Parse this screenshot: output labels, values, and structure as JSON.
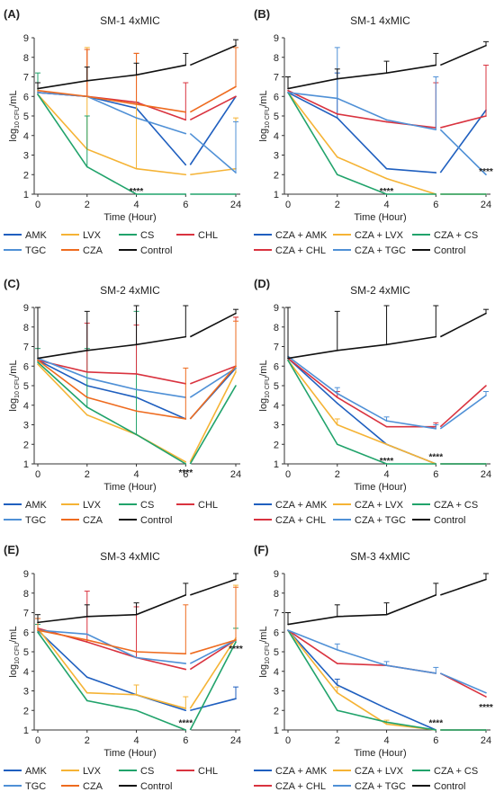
{
  "colors": {
    "AMK": "#1f5fbf",
    "LVX": "#f5b335",
    "CS": "#21a36b",
    "CHL": "#d9333f",
    "TGC": "#4f90d6",
    "CZA": "#ee6b1f",
    "Control": "#111111"
  },
  "chart_data": [
    {
      "type": "line",
      "panel": "(A)",
      "title": "SM-1 4xMIC",
      "xlabel": "Time (Hour)",
      "ylabel_main": "log",
      "ylabel_sub": "10 CFU",
      "ylabel_tail": "/mL",
      "x": [
        0,
        2,
        4,
        6,
        24
      ],
      "xticks": [
        "0",
        "2",
        "4",
        "6",
        "24"
      ],
      "ylim": [
        1,
        9
      ],
      "yticks": [
        1,
        2,
        3,
        4,
        5,
        6,
        7,
        8,
        9
      ],
      "annotations": [
        {
          "text": "****",
          "x": 4,
          "y": 1.05
        }
      ],
      "series": [
        {
          "name": "AMK",
          "key": "AMK",
          "values": [
            6.2,
            6.0,
            5.4,
            2.5,
            6.0
          ],
          "errors": [
            0,
            0,
            0.3,
            0,
            0
          ]
        },
        {
          "name": "LVX",
          "key": "LVX",
          "values": [
            6.1,
            3.3,
            2.3,
            2.0,
            2.3
          ],
          "errors": [
            0,
            5.2,
            5.9,
            0,
            2.6
          ]
        },
        {
          "name": "CS",
          "key": "CS",
          "values": [
            6.1,
            2.4,
            1.0,
            1.0,
            1.0
          ],
          "errors": [
            1.1,
            2.6,
            0,
            0,
            0
          ]
        },
        {
          "name": "CHL",
          "key": "CHL",
          "values": [
            6.2,
            6.0,
            5.7,
            4.8,
            6.0
          ],
          "errors": [
            0,
            2.4,
            2.5,
            1.9,
            0
          ]
        },
        {
          "name": "TGC",
          "key": "TGC",
          "values": [
            6.2,
            6.0,
            4.9,
            4.1,
            2.1
          ],
          "errors": [
            0,
            0,
            0,
            0,
            2.6
          ]
        },
        {
          "name": "CZA",
          "key": "CZA",
          "values": [
            6.3,
            6.0,
            5.6,
            5.2,
            6.5
          ],
          "errors": [
            0,
            2.4,
            2.6,
            0,
            2.0
          ]
        },
        {
          "name": "Control",
          "key": "Control",
          "values": [
            6.4,
            6.8,
            7.1,
            7.6,
            8.6
          ],
          "errors": [
            0.3,
            0.7,
            0.6,
            0.6,
            0.3
          ]
        }
      ],
      "legend": [
        [
          "AMK",
          "LVX",
          "CS",
          "CHL"
        ],
        [
          "TGC",
          "CZA",
          "Control"
        ]
      ]
    },
    {
      "type": "line",
      "panel": "(B)",
      "title": "SM-1 4xMIC",
      "xlabel": "Time (Hour)",
      "ylabel_main": "log",
      "ylabel_sub": "10 CFU",
      "ylabel_tail": "/mL",
      "x": [
        0,
        2,
        4,
        6,
        24
      ],
      "xticks": [
        "0",
        "2",
        "4",
        "6",
        "24"
      ],
      "ylim": [
        1,
        9
      ],
      "yticks": [
        1,
        2,
        3,
        4,
        5,
        6,
        7,
        8,
        9
      ],
      "annotations": [
        {
          "text": "****",
          "x": 4,
          "y": 1.05
        },
        {
          "text": "****",
          "x": 24,
          "y": 2.05
        }
      ],
      "series": [
        {
          "name": "CZA + AMK",
          "key": "AMK",
          "values": [
            6.2,
            4.9,
            2.3,
            2.1,
            5.3
          ],
          "errors": [
            0,
            2.3,
            0,
            0,
            0
          ]
        },
        {
          "name": "CZA + LVX",
          "key": "LVX",
          "values": [
            6.2,
            2.9,
            1.8,
            1.0,
            1.0
          ],
          "errors": [
            0,
            0,
            0,
            0,
            0
          ]
        },
        {
          "name": "CZA + CS",
          "key": "CS",
          "values": [
            6.2,
            2.0,
            1.0,
            1.0,
            1.0
          ],
          "errors": [
            0,
            0,
            0,
            0,
            0
          ]
        },
        {
          "name": "CZA + CHL",
          "key": "CHL",
          "values": [
            6.3,
            5.1,
            4.7,
            4.4,
            5.0
          ],
          "errors": [
            0,
            0,
            0,
            2.3,
            2.6
          ]
        },
        {
          "name": "CZA + TGC",
          "key": "TGC",
          "values": [
            6.2,
            5.9,
            4.8,
            4.3,
            2.0
          ],
          "errors": [
            0,
            2.6,
            0,
            2.7,
            0
          ]
        },
        {
          "name": "Control",
          "key": "Control",
          "values": [
            6.4,
            6.9,
            7.2,
            7.6,
            8.6
          ],
          "errors": [
            0.6,
            0.5,
            0.6,
            0.6,
            0.2
          ]
        }
      ],
      "legend": [
        [
          "CZA + AMK",
          "CZA + LVX",
          "CZA + CS"
        ],
        [
          "CZA + CHL",
          "CZA + TGC",
          "Control"
        ]
      ]
    },
    {
      "type": "line",
      "panel": "(C)",
      "title": "SM-2 4xMIC",
      "xlabel": "Time (Hour)",
      "ylabel_main": "log",
      "ylabel_sub": "10 CFU",
      "ylabel_tail": "/mL",
      "x": [
        0,
        2,
        4,
        6,
        24
      ],
      "xticks": [
        "0",
        "2",
        "4",
        "6",
        "24"
      ],
      "ylim": [
        1,
        9
      ],
      "yticks": [
        1,
        2,
        3,
        4,
        5,
        6,
        7,
        8,
        9
      ],
      "annotations": [
        {
          "text": "****",
          "x": 6,
          "y": 0.45
        }
      ],
      "series": [
        {
          "name": "AMK",
          "key": "AMK",
          "values": [
            6.3,
            5.0,
            4.4,
            3.3,
            5.9
          ],
          "errors": [
            0,
            0,
            0,
            0,
            0
          ]
        },
        {
          "name": "LVX",
          "key": "LVX",
          "values": [
            6.1,
            3.5,
            2.5,
            1.1,
            5.7
          ],
          "errors": [
            0,
            0,
            0,
            0,
            2.8
          ]
        },
        {
          "name": "CS",
          "key": "CS",
          "values": [
            6.2,
            3.9,
            2.5,
            1.0,
            5.0
          ],
          "errors": [
            0.7,
            3.0,
            6.3,
            0,
            0
          ]
        },
        {
          "name": "CHL",
          "key": "CHL",
          "values": [
            6.3,
            5.7,
            5.6,
            5.1,
            6.0
          ],
          "errors": [
            0,
            2.5,
            2.5,
            0,
            2.5
          ]
        },
        {
          "name": "TGC",
          "key": "TGC",
          "values": [
            6.4,
            5.4,
            4.8,
            4.4,
            5.9
          ],
          "errors": [
            0,
            0,
            0,
            0,
            0
          ]
        },
        {
          "name": "CZA",
          "key": "CZA",
          "values": [
            6.3,
            4.4,
            3.7,
            3.3,
            6.0
          ],
          "errors": [
            0,
            0,
            0,
            2.6,
            2.3
          ]
        },
        {
          "name": "Control",
          "key": "Control",
          "values": [
            6.4,
            6.8,
            7.1,
            7.5,
            8.7
          ],
          "errors": [
            2.6,
            2.0,
            2.0,
            1.8,
            0.2
          ]
        }
      ],
      "legend": [
        [
          "AMK",
          "LVX",
          "CS",
          "CHL"
        ],
        [
          "TGC",
          "CZA",
          "Control"
        ]
      ]
    },
    {
      "type": "line",
      "panel": "(D)",
      "title": "SM-2 4xMIC",
      "xlabel": "Time (Hour)",
      "ylabel_main": "log",
      "ylabel_sub": "10 CFU",
      "ylabel_tail": "/mL",
      "x": [
        0,
        2,
        4,
        6,
        24
      ],
      "xticks": [
        "0",
        "2",
        "4",
        "6",
        "24"
      ],
      "ylim": [
        1,
        9
      ],
      "yticks": [
        1,
        2,
        3,
        4,
        5,
        6,
        7,
        8,
        9
      ],
      "annotations": [
        {
          "text": "****",
          "x": 4,
          "y": 1.05
        },
        {
          "text": "****",
          "x": 6,
          "y": 1.25
        }
      ],
      "series": [
        {
          "name": "CZA + AMK",
          "key": "AMK",
          "values": [
            6.4,
            4.1,
            2.0,
            1.0,
            1.0
          ],
          "errors": [
            0,
            0,
            0,
            0,
            0
          ]
        },
        {
          "name": "CZA + LVX",
          "key": "LVX",
          "values": [
            6.3,
            3.0,
            2.0,
            1.0,
            1.0
          ],
          "errors": [
            0,
            0.3,
            0,
            0,
            0
          ]
        },
        {
          "name": "CZA + CS",
          "key": "CS",
          "values": [
            6.3,
            2.0,
            1.0,
            1.0,
            1.0
          ],
          "errors": [
            0,
            0,
            0,
            0,
            0
          ]
        },
        {
          "name": "CZA + CHL",
          "key": "CHL",
          "values": [
            6.4,
            4.4,
            2.9,
            2.9,
            5.0
          ],
          "errors": [
            0,
            0.3,
            0,
            0.2,
            0
          ]
        },
        {
          "name": "CZA + TGC",
          "key": "TGC",
          "values": [
            6.5,
            4.6,
            3.2,
            2.8,
            4.5
          ],
          "errors": [
            0,
            0.3,
            0.2,
            0.2,
            0.2
          ]
        },
        {
          "name": "Control",
          "key": "Control",
          "values": [
            6.4,
            6.8,
            7.1,
            7.5,
            8.7
          ],
          "errors": [
            2.6,
            2.0,
            2.0,
            1.8,
            0.2
          ]
        }
      ],
      "legend": [
        [
          "CZA + AMK",
          "CZA + LVX",
          "CZA + CS"
        ],
        [
          "CZA + CHL",
          "CZA + TGC",
          "Control"
        ]
      ]
    },
    {
      "type": "line",
      "panel": "(E)",
      "title": "SM-3 4xMIC",
      "xlabel": "Time (Hour)",
      "ylabel_main": "log",
      "ylabel_sub": "10 CFU",
      "ylabel_tail": "/mL",
      "x": [
        0,
        2,
        4,
        6,
        24
      ],
      "xticks": [
        "0",
        "2",
        "4",
        "6",
        "24"
      ],
      "ylim": [
        1,
        9
      ],
      "yticks": [
        1,
        2,
        3,
        4,
        5,
        6,
        7,
        8,
        9
      ],
      "annotations": [
        {
          "text": "****",
          "x": 6,
          "y": 1.25
        },
        {
          "text": "****",
          "x": 24,
          "y": 5.05
        }
      ],
      "series": [
        {
          "name": "AMK",
          "key": "AMK",
          "values": [
            6.1,
            3.7,
            2.8,
            2.0,
            2.6
          ],
          "errors": [
            0,
            0,
            0,
            0,
            0.6
          ]
        },
        {
          "name": "LVX",
          "key": "LVX",
          "values": [
            6.2,
            2.9,
            2.8,
            2.1,
            5.7
          ],
          "errors": [
            0,
            0,
            0.5,
            0.6,
            2.7
          ]
        },
        {
          "name": "CS",
          "key": "CS",
          "values": [
            6.0,
            2.5,
            2.0,
            1.0,
            5.5
          ],
          "errors": [
            0.4,
            0,
            0,
            0,
            0.7
          ]
        },
        {
          "name": "CHL",
          "key": "CHL",
          "values": [
            6.2,
            5.5,
            4.7,
            4.1,
            5.6
          ],
          "errors": [
            0,
            2.6,
            2.6,
            0,
            0
          ]
        },
        {
          "name": "TGC",
          "key": "TGC",
          "values": [
            6.1,
            5.9,
            4.7,
            4.4,
            5.6
          ],
          "errors": [
            0,
            0,
            0,
            0,
            0
          ]
        },
        {
          "name": "CZA",
          "key": "CZA",
          "values": [
            6.1,
            5.6,
            5.0,
            4.9,
            5.6
          ],
          "errors": [
            0.6,
            0,
            0,
            2.5,
            2.7
          ]
        },
        {
          "name": "Control",
          "key": "Control",
          "values": [
            6.5,
            6.8,
            6.9,
            7.9,
            8.7
          ],
          "errors": [
            0.4,
            0.6,
            0.6,
            0.6,
            0.3
          ]
        }
      ],
      "legend": [
        [
          "AMK",
          "LVX",
          "CS",
          "CHL"
        ],
        [
          "TGC",
          "CZA",
          "Control"
        ]
      ]
    },
    {
      "type": "line",
      "panel": "(F)",
      "title": "SM-3 4xMIC",
      "xlabel": "Time (Hour)",
      "ylabel_main": "log",
      "ylabel_sub": "10 CFU",
      "ylabel_tail": "/mL",
      "x": [
        0,
        2,
        4,
        6,
        24
      ],
      "xticks": [
        "0",
        "2",
        "4",
        "6",
        "24"
      ],
      "ylim": [
        1,
        9
      ],
      "yticks": [
        1,
        2,
        3,
        4,
        5,
        6,
        7,
        8,
        9
      ],
      "annotations": [
        {
          "text": "****",
          "x": 6,
          "y": 1.25
        },
        {
          "text": "****",
          "x": 24,
          "y": 2.05
        }
      ],
      "series": [
        {
          "name": "CZA + AMK",
          "key": "AMK",
          "values": [
            6.1,
            3.3,
            2.1,
            1.0,
            1.0
          ],
          "errors": [
            0,
            0.3,
            0,
            0,
            0
          ]
        },
        {
          "name": "CZA + LVX",
          "key": "LVX",
          "values": [
            6.1,
            2.9,
            1.3,
            1.0,
            1.0
          ],
          "errors": [
            0,
            0.3,
            0.2,
            0,
            0
          ]
        },
        {
          "name": "CZA + CS",
          "key": "CS",
          "values": [
            6.1,
            2.0,
            1.4,
            1.0,
            1.0
          ],
          "errors": [
            0,
            0,
            0,
            0,
            0
          ]
        },
        {
          "name": "CZA + CHL",
          "key": "CHL",
          "values": [
            6.1,
            4.4,
            4.3,
            3.9,
            2.7
          ],
          "errors": [
            0,
            0,
            0,
            0,
            0
          ]
        },
        {
          "name": "CZA + TGC",
          "key": "TGC",
          "values": [
            6.1,
            5.1,
            4.3,
            3.9,
            2.9
          ],
          "errors": [
            0,
            0.3,
            0.2,
            0.3,
            0
          ]
        },
        {
          "name": "Control",
          "key": "Control",
          "values": [
            6.4,
            6.8,
            6.9,
            7.9,
            8.7
          ],
          "errors": [
            0.6,
            0.6,
            0.6,
            0.6,
            0.3
          ]
        }
      ],
      "legend": [
        [
          "CZA + AMK",
          "CZA + LVX",
          "CZA + CS"
        ],
        [
          "CZA + CHL",
          "CZA + TGC",
          "Control"
        ]
      ]
    }
  ]
}
